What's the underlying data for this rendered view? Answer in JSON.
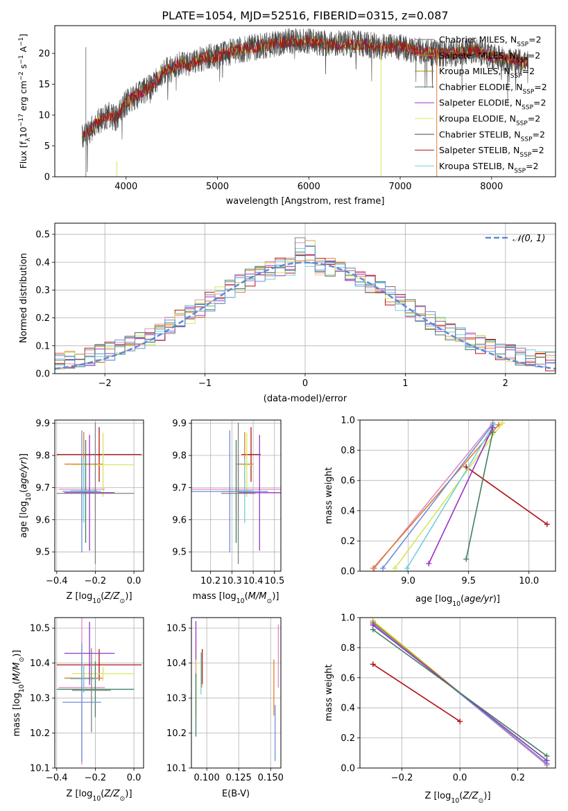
{
  "figure_title": "PLATE=1054, MJD=52516, FIBERID=0315, z=0.087",
  "chart_data": [
    {
      "id": "spectrum",
      "type": "line",
      "xlabel": "wavelength [Angstrom, rest frame]",
      "ylabel_parts": [
        "Flux [f",
        "λ",
        "10",
        "−17",
        " erg cm",
        "−2",
        " s",
        "−1",
        " A",
        "−1",
        "]"
      ],
      "xlim": [
        3220,
        8700
      ],
      "ylim": [
        0,
        24.5
      ],
      "xticks": [
        4000,
        5000,
        6000,
        7000,
        8000
      ],
      "yticks": [
        0,
        5,
        10,
        15,
        20
      ],
      "grid": false,
      "legend_position": "upper right",
      "continuum_x": [
        3520,
        3600,
        3700,
        3800,
        3900,
        3950,
        4000,
        4100,
        4200,
        4300,
        4400,
        4500,
        4600,
        4700,
        4800,
        4900,
        5000,
        5200,
        5400,
        5600,
        5800,
        6000,
        6200,
        6400,
        6600,
        6800,
        7000,
        7200,
        7400,
        7600,
        7800,
        8000,
        8200,
        8400
      ],
      "continuum_y": [
        6.5,
        7.5,
        9.0,
        10.0,
        9.5,
        11.0,
        12.0,
        13.0,
        14.0,
        15.0,
        17.0,
        17.5,
        18.5,
        18.0,
        19.0,
        19.5,
        19.5,
        20.5,
        21.0,
        21.5,
        22.0,
        22.0,
        21.5,
        21.5,
        21.5,
        21.0,
        21.0,
        20.5,
        20.0,
        20.0,
        20.5,
        19.5,
        19.0,
        18.5
      ],
      "series": [
        {
          "label": "Chabrier MILES",
          "sub": "SSP",
          "suffix": "=2",
          "color": "#6b6b6b"
        },
        {
          "label": "Salpeter MILES",
          "sub": "SSP",
          "suffix": "=2",
          "color": "#e07a2a"
        },
        {
          "label": "Kroupa MILES",
          "sub": "SSP",
          "suffix": "=2",
          "color": "#b8860b"
        },
        {
          "label": "Chabrier ELODIE",
          "sub": "SSP",
          "suffix": "=2",
          "color": "#3f7f5f"
        },
        {
          "label": "Salpeter ELODIE",
          "sub": "SSP",
          "suffix": "=2",
          "color": "#9b30c8"
        },
        {
          "label": "Kroupa ELODIE",
          "sub": "SSP",
          "suffix": "=2",
          "color": "#d8e45a"
        },
        {
          "label": "Chabrier STELIB",
          "sub": "SSP",
          "suffix": "=2",
          "color": "#444444"
        },
        {
          "label": "Salpeter STELIB",
          "sub": "SSP",
          "suffix": "=2",
          "color": "#b01010"
        },
        {
          "label": "Kroupa STELIB",
          "sub": "SSP",
          "suffix": "=2",
          "color": "#6fd0d8"
        }
      ]
    },
    {
      "id": "residuals",
      "type": "line",
      "xlabel": "(data-model)/error",
      "ylabel": "Normed distribution",
      "xlim": [
        -2.5,
        2.5
      ],
      "ylim": [
        0,
        0.54
      ],
      "xticks": [
        -2,
        -1,
        0,
        1,
        2
      ],
      "xtick_labels": [
        "−2",
        "−1",
        "0",
        "1",
        "2"
      ],
      "yticks": [
        0.0,
        0.1,
        0.2,
        0.3,
        0.4,
        0.5
      ],
      "grid": true,
      "legend_position": "upper right",
      "bin_width": 0.1,
      "histogram_colors": [
        "#e07a2a",
        "#9b30c8",
        "#b01010",
        "#6fd0d8",
        "#e08ac0",
        "#d8e45a",
        "#3f7f5f",
        "#808080",
        "#6b8fd8"
      ],
      "gaussian": {
        "label": "𝒩(0, 1)",
        "mean": 0,
        "sigma": 1,
        "color": "#5b8ad8"
      }
    },
    {
      "id": "z-vs-age",
      "type": "scatter",
      "xlabel": "Z [log10(Z/Z⊙)]",
      "ylabel": "age  [log10(age/yr)]",
      "xlim": [
        -0.41,
        0.05
      ],
      "ylim": [
        9.44,
        9.91
      ],
      "xticks": [
        -0.4,
        -0.2,
        0.0
      ],
      "xtick_labels": [
        "−0.4",
        "−0.2",
        "0.0"
      ],
      "yticks": [
        9.5,
        9.6,
        9.7,
        9.8,
        9.9
      ],
      "grid": true,
      "points": [
        {
          "x": -0.18,
          "xerr": 0.22,
          "y": 9.803,
          "yerr": 0.085,
          "color": "#b01010"
        },
        {
          "x": -0.26,
          "xerr": 0.1,
          "y": 9.773,
          "yerr": 0.1,
          "color": "#e07a2a"
        },
        {
          "x": -0.16,
          "xerr": 0.16,
          "y": 9.771,
          "yerr": 0.1,
          "color": "#d8e45a"
        },
        {
          "x": -0.27,
          "xerr": 0.12,
          "y": 9.695,
          "yerr": 0.1,
          "color": "#e08ac0"
        },
        {
          "x": -0.25,
          "xerr": 0.06,
          "y": 9.688,
          "yerr": 0.16,
          "color": "#3f7f5f"
        },
        {
          "x": -0.26,
          "xerr": 0.07,
          "y": 9.69,
          "yerr": 0.1,
          "color": "#6fd0d8"
        },
        {
          "x": -0.23,
          "xerr": 0.13,
          "y": 9.684,
          "yerr": 0.18,
          "color": "#9b30c8"
        },
        {
          "x": -0.27,
          "xerr": 0.1,
          "y": 9.688,
          "yerr": 0.19,
          "color": "#6b8fd8"
        },
        {
          "x": -0.2,
          "xerr": 0.2,
          "y": 9.682,
          "yerr": 0.22,
          "color": "#808080"
        }
      ]
    },
    {
      "id": "mass-vs-age",
      "type": "scatter",
      "xlabel": "mass [log10(M/M⊙)]",
      "ylabel": "",
      "xlim": [
        10.11,
        10.53
      ],
      "ylim": [
        9.44,
        9.91
      ],
      "xticks": [
        10.2,
        10.3,
        10.4,
        10.5
      ],
      "yticks": [
        9.5,
        9.6,
        9.7,
        9.8,
        9.9
      ],
      "grid": true,
      "points": [
        {
          "x": 10.39,
          "xerr": 0.045,
          "y": 9.803,
          "yerr": 0.085,
          "color": "#b01010"
        },
        {
          "x": 10.36,
          "xerr": 0.04,
          "y": 9.773,
          "yerr": 0.1,
          "color": "#e07a2a"
        },
        {
          "x": 10.37,
          "xerr": 0.02,
          "y": 9.771,
          "yerr": 0.1,
          "color": "#d8e45a"
        },
        {
          "x": 10.33,
          "xerr": 0.22,
          "y": 9.695,
          "yerr": 0.1,
          "color": "#e08ac0"
        },
        {
          "x": 10.32,
          "xerr": 0.07,
          "y": 9.688,
          "yerr": 0.16,
          "color": "#3f7f5f"
        },
        {
          "x": 10.36,
          "xerr": 0.04,
          "y": 9.69,
          "yerr": 0.1,
          "color": "#6fd0d8"
        },
        {
          "x": 10.43,
          "xerr": 0.1,
          "y": 9.684,
          "yerr": 0.18,
          "color": "#9b30c8"
        },
        {
          "x": 10.29,
          "xerr": 0.18,
          "y": 9.688,
          "yerr": 0.19,
          "color": "#6b8fd8"
        },
        {
          "x": 10.33,
          "xerr": 0.08,
          "y": 9.682,
          "yerr": 0.22,
          "color": "#808080"
        }
      ]
    },
    {
      "id": "age-vs-weight",
      "type": "line",
      "xlabel": "age  [log10(age/yr)]",
      "ylabel": "mass weight",
      "xlim": [
        8.6,
        10.22
      ],
      "ylim": [
        0,
        1.0
      ],
      "xticks": [
        9.0,
        9.5,
        10.0
      ],
      "yticks": [
        0.0,
        0.2,
        0.4,
        0.6,
        0.8,
        1.0
      ],
      "grid": true,
      "series": [
        {
          "x": [
            9.48,
            10.15
          ],
          "y": [
            0.69,
            0.31
          ],
          "color": "#b01010"
        },
        {
          "x": [
            8.72,
            9.7
          ],
          "y": [
            0.02,
            0.98
          ],
          "color": "#e08ac0"
        },
        {
          "x": [
            8.71,
            9.75
          ],
          "y": [
            0.02,
            0.97
          ],
          "color": "#e07a2a"
        },
        {
          "x": [
            8.79,
            9.7
          ],
          "y": [
            0.02,
            0.97
          ],
          "color": "#6b8fd8"
        },
        {
          "x": [
            8.89,
            9.78
          ],
          "y": [
            0.02,
            0.98
          ],
          "color": "#d8e45a"
        },
        {
          "x": [
            8.99,
            9.71
          ],
          "y": [
            0.02,
            0.97
          ],
          "color": "#6fd0d8"
        },
        {
          "x": [
            9.17,
            9.7
          ],
          "y": [
            0.05,
            0.95
          ],
          "color": "#9b30c8"
        },
        {
          "x": [
            9.48,
            9.7
          ],
          "y": [
            0.08,
            0.92
          ],
          "color": "#3f7f5f"
        }
      ]
    },
    {
      "id": "z-vs-mass",
      "type": "scatter",
      "xlabel": "Z [log10(Z/Z⊙)]",
      "ylabel": "mass [log10(M/M⊙)]",
      "xlim": [
        -0.41,
        0.05
      ],
      "ylim": [
        10.1,
        10.53
      ],
      "xticks": [
        -0.4,
        -0.2,
        0.0
      ],
      "xtick_labels": [
        "−0.4",
        "−0.2",
        "0.0"
      ],
      "yticks": [
        10.1,
        10.2,
        10.3,
        10.4,
        10.5
      ],
      "grid": true,
      "points": [
        {
          "x": -0.18,
          "xerr": 0.22,
          "y": 10.395,
          "yerr": 0.045,
          "color": "#b01010"
        },
        {
          "x": -0.26,
          "xerr": 0.1,
          "y": 10.357,
          "yerr": 0.04,
          "color": "#e07a2a"
        },
        {
          "x": -0.16,
          "xerr": 0.16,
          "y": 10.37,
          "yerr": 0.02,
          "color": "#d8e45a"
        },
        {
          "x": -0.27,
          "xerr": 0.12,
          "y": 10.33,
          "yerr": 0.22,
          "color": "#e08ac0"
        },
        {
          "x": -0.2,
          "xerr": 0.2,
          "y": 10.325,
          "yerr": 0.08,
          "color": "#3f7f5f"
        },
        {
          "x": -0.26,
          "xerr": 0.07,
          "y": 10.355,
          "yerr": 0.04,
          "color": "#6fd0d8"
        },
        {
          "x": -0.23,
          "xerr": 0.13,
          "y": 10.428,
          "yerr": 0.09,
          "color": "#9b30c8"
        },
        {
          "x": -0.27,
          "xerr": 0.1,
          "y": 10.288,
          "yerr": 0.17,
          "color": "#6b8fd8"
        },
        {
          "x": -0.22,
          "xerr": 0.1,
          "y": 10.322,
          "yerr": 0.12,
          "color": "#808080"
        }
      ]
    },
    {
      "id": "ebv-vs-mass",
      "type": "scatter",
      "xlabel": "E(B-V)",
      "ylabel": "",
      "xlim": [
        0.088,
        0.158
      ],
      "ylim": [
        10.1,
        10.53
      ],
      "xticks": [
        0.1,
        0.125,
        0.15
      ],
      "xtick_labels": [
        "0.100",
        "0.125",
        "0.150"
      ],
      "yticks": [
        10.1,
        10.2,
        10.3,
        10.4,
        10.5
      ],
      "grid": true,
      "points": [
        {
          "x": 0.0915,
          "y": 10.44,
          "yerr": 0.08,
          "color": "#9b30c8"
        },
        {
          "x": 0.0917,
          "y": 10.33,
          "yerr": 0.08,
          "color": "#d8e45a"
        },
        {
          "x": 0.0915,
          "y": 10.28,
          "yerr": 0.09,
          "color": "#3f7f5f"
        },
        {
          "x": 0.0965,
          "y": 10.39,
          "yerr": 0.05,
          "color": "#b01010"
        },
        {
          "x": 0.096,
          "y": 10.38,
          "yerr": 0.05,
          "color": "#e07a2a"
        },
        {
          "x": 0.0955,
          "y": 10.37,
          "yerr": 0.06,
          "color": "#6fd0d8"
        },
        {
          "x": 0.1525,
          "y": 10.33,
          "yerr": 0.08,
          "color": "#e07a2a"
        },
        {
          "x": 0.1535,
          "y": 10.2,
          "yerr": 0.08,
          "color": "#6b8fd8"
        },
        {
          "x": 0.156,
          "y": 10.42,
          "yerr": 0.09,
          "color": "#e08ac0"
        }
      ]
    },
    {
      "id": "z-vs-weight",
      "type": "line",
      "xlabel": "Z [log10(Z/Z⊙)]",
      "ylabel": "mass weight",
      "xlim": [
        -0.345,
        0.33
      ],
      "ylim": [
        0,
        1.0
      ],
      "xticks": [
        -0.2,
        0.0,
        0.2
      ],
      "xtick_labels": [
        "−0.2",
        "0.0",
        "0.2"
      ],
      "yticks": [
        0.0,
        0.2,
        0.4,
        0.6,
        0.8,
        1.0
      ],
      "grid": true,
      "series": [
        {
          "x": [
            -0.3,
            0.0
          ],
          "y": [
            0.69,
            0.31
          ],
          "color": "#b01010"
        },
        {
          "x": [
            -0.3,
            0.3
          ],
          "y": [
            0.98,
            0.02
          ],
          "color": "#e07a2a"
        },
        {
          "x": [
            -0.3,
            0.3
          ],
          "y": [
            0.98,
            0.02
          ],
          "color": "#d8e45a"
        },
        {
          "x": [
            -0.3,
            0.3
          ],
          "y": [
            0.97,
            0.02
          ],
          "color": "#e08ac0"
        },
        {
          "x": [
            -0.3,
            0.3
          ],
          "y": [
            0.97,
            0.03
          ],
          "color": "#b8860b"
        },
        {
          "x": [
            -0.3,
            0.3
          ],
          "y": [
            0.96,
            0.03
          ],
          "color": "#6b8fd8"
        },
        {
          "x": [
            -0.3,
            0.3
          ],
          "y": [
            0.95,
            0.05
          ],
          "color": "#6fd0d8"
        },
        {
          "x": [
            -0.3,
            0.3
          ],
          "y": [
            0.95,
            0.05
          ],
          "color": "#9b30c8"
        },
        {
          "x": [
            -0.3,
            0.3
          ],
          "y": [
            0.92,
            0.08
          ],
          "color": "#3f7f5f"
        }
      ]
    }
  ]
}
